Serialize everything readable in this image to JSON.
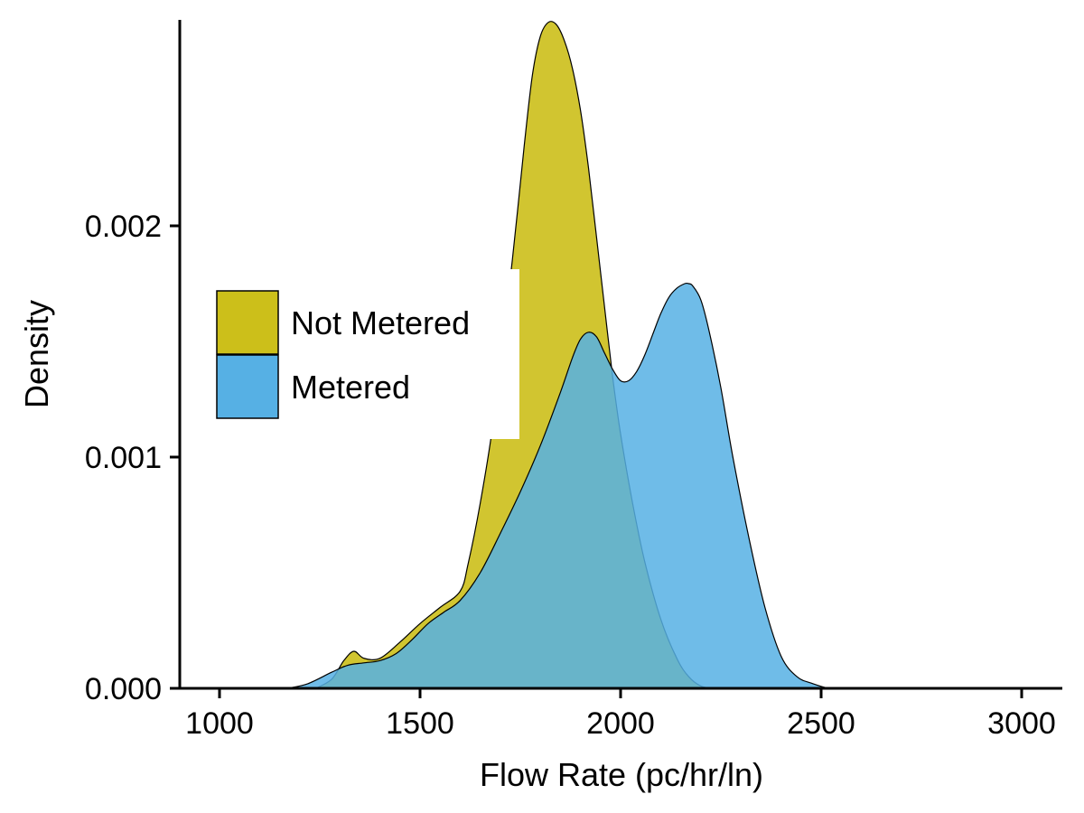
{
  "chart_data": {
    "type": "area",
    "title": "",
    "xlabel": "Flow Rate (pc/hr/ln)",
    "ylabel": "Density",
    "xlim": [
      900,
      3100
    ],
    "ylim": [
      0,
      0.0029
    ],
    "x_ticks": [
      1000,
      1500,
      2000,
      2500,
      3000
    ],
    "x_tick_labels": [
      "1000",
      "1500",
      "2000",
      "2500",
      "3000"
    ],
    "y_ticks": [
      0,
      0.001,
      0.002
    ],
    "y_tick_labels": [
      "0.000",
      "0.001",
      "0.002"
    ],
    "grid": false,
    "legend_position": "left",
    "series": [
      {
        "name": "Not Metered",
        "color": "#CCBF1A",
        "x": [
          1240,
          1280,
          1310,
          1335,
          1360,
          1400,
          1450,
          1500,
          1550,
          1600,
          1620,
          1650,
          1680,
          1700,
          1730,
          1760,
          1780,
          1800,
          1820,
          1840,
          1860,
          1880,
          1900,
          1920,
          1940,
          1960,
          1980,
          2000,
          2030,
          2060,
          2100,
          2140,
          2170,
          2200,
          2230
        ],
        "y": [
          0.0,
          4e-05,
          0.00012,
          0.00016,
          0.00013,
          0.00013,
          0.0002,
          0.00028,
          0.00035,
          0.00042,
          0.00054,
          0.0008,
          0.00112,
          0.00142,
          0.00185,
          0.00235,
          0.00265,
          0.00282,
          0.00288,
          0.00287,
          0.0028,
          0.00268,
          0.0025,
          0.00225,
          0.00195,
          0.00165,
          0.00135,
          0.0011,
          0.0008,
          0.00055,
          0.0003,
          0.00013,
          5e-05,
          1e-05,
          0.0
        ]
      },
      {
        "name": "Metered",
        "color": "#56B0E4",
        "x": [
          1170,
          1220,
          1280,
          1320,
          1360,
          1400,
          1440,
          1480,
          1520,
          1560,
          1600,
          1650,
          1700,
          1750,
          1800,
          1850,
          1880,
          1900,
          1920,
          1940,
          1960,
          1980,
          2000,
          2020,
          2040,
          2060,
          2080,
          2100,
          2120,
          2140,
          2160,
          2170,
          2180,
          2200,
          2220,
          2250,
          2280,
          2320,
          2360,
          2400,
          2440,
          2480,
          2520,
          2560
        ],
        "y": [
          0.0,
          2e-05,
          7e-05,
          0.0001,
          0.00011,
          0.00012,
          0.00015,
          0.00021,
          0.00028,
          0.00033,
          0.00038,
          0.0005,
          0.00067,
          0.00085,
          0.00105,
          0.00128,
          0.00143,
          0.00151,
          0.00154,
          0.00152,
          0.00145,
          0.00138,
          0.00133,
          0.00133,
          0.00137,
          0.00144,
          0.00153,
          0.00162,
          0.00169,
          0.00173,
          0.00175,
          0.00175,
          0.00174,
          0.00168,
          0.00155,
          0.0013,
          0.001,
          0.00065,
          0.00035,
          0.00014,
          5e-05,
          2e-05,
          0.0,
          0.0
        ]
      }
    ]
  }
}
